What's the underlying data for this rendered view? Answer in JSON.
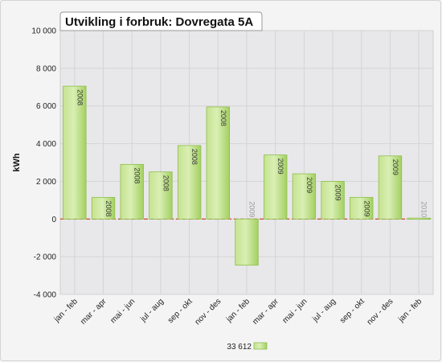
{
  "chart_data": {
    "type": "bar",
    "title": "Utvikling i forbruk:  Dovregata 5A",
    "ylabel": "kWh",
    "xlabel": "",
    "ylim": [
      -4000,
      10000
    ],
    "yticks": [
      10000,
      8000,
      6000,
      4000,
      2000,
      0,
      -2000,
      -4000
    ],
    "ytick_labels": [
      "10 000",
      "8 000",
      "6 000",
      "4 000",
      "2 000",
      "0",
      "-2 000",
      "-4 000"
    ],
    "categories": [
      "jan - feb",
      "mar - apr",
      "mai - jun",
      "jul - aug",
      "sep - okt",
      "nov - des",
      "jan - feb",
      "mar - apr",
      "mai - jun",
      "jul - aug",
      "sep - okt",
      "nov - des",
      "jan - feb"
    ],
    "bar_labels": [
      "2008",
      "2008",
      "2008",
      "2008",
      "2008",
      "2008",
      "2009",
      "2009",
      "2009",
      "2009",
      "2009",
      "2009",
      "2010"
    ],
    "values": [
      7050,
      1150,
      2900,
      2500,
      3900,
      5950,
      -2450,
      3400,
      2400,
      2000,
      1150,
      3350,
      50
    ],
    "legend": {
      "label": "33 612",
      "placement": "bottom-center"
    },
    "grid": true,
    "colors": {
      "bar_light": "#d6ecae",
      "bar_dark": "#9ccb57",
      "bar_edge": "#8ebe4b",
      "zero_line": "#cc2200",
      "plot_bg": "#e8e8ea",
      "grid": "#d4d4d4"
    }
  }
}
